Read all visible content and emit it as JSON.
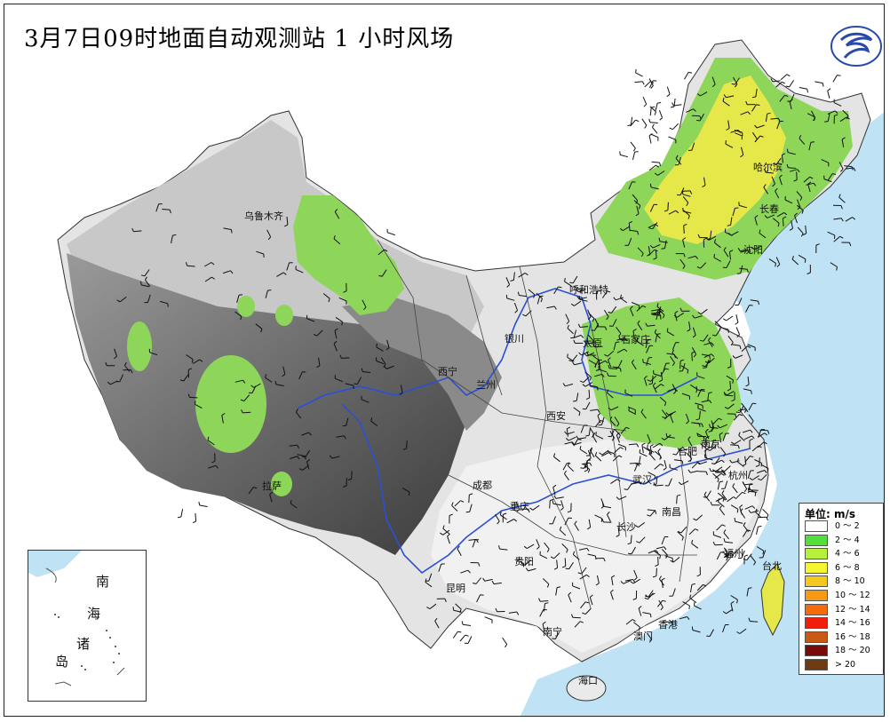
{
  "title": "3月7日09时地面自动观测站 1 小时风场",
  "logo_icon": "cma-logo-icon",
  "colors": {
    "sea": "#bfe3f5",
    "land_light": "#ececec",
    "land_mid": "#b8b8b8",
    "land_dark": "#555555",
    "wind_green": "#7fd44a",
    "wind_yellow": "#e6e84a",
    "river": "#2b4fd8",
    "border": "#333333",
    "barb": "#111111"
  },
  "cities": [
    {
      "name": "哈尔滨"
    },
    {
      "name": "长春"
    },
    {
      "name": "沈阳"
    },
    {
      "name": "乌鲁木齐"
    },
    {
      "name": "呼和浩特"
    },
    {
      "name": "银川"
    },
    {
      "name": "太原"
    },
    {
      "name": "石家庄"
    },
    {
      "name": "西宁"
    },
    {
      "name": "兰州"
    },
    {
      "name": "西安"
    },
    {
      "name": "合肥"
    },
    {
      "name": "南京"
    },
    {
      "name": "杭州"
    },
    {
      "name": "武汉"
    },
    {
      "name": "成都"
    },
    {
      "name": "重庆"
    },
    {
      "name": "长沙"
    },
    {
      "name": "南昌"
    },
    {
      "name": "贵阳"
    },
    {
      "name": "昆明"
    },
    {
      "name": "南宁"
    },
    {
      "name": "澳门"
    },
    {
      "name": "香港"
    },
    {
      "name": "福州"
    },
    {
      "name": "台北"
    },
    {
      "name": "海口"
    },
    {
      "name": "拉萨"
    }
  ],
  "inset": {
    "line1": "南",
    "line2": "海",
    "line3": "诸",
    "line4": "岛"
  },
  "legend": {
    "title": "单位: m/s",
    "items": [
      {
        "label": "0 ～ 2",
        "color": "#ffffff"
      },
      {
        "label": "2 ～ 4",
        "color": "#4fe03a"
      },
      {
        "label": "4 ～ 6",
        "color": "#b6f03a"
      },
      {
        "label": "6 ～ 8",
        "color": "#f5f532"
      },
      {
        "label": "8 ～ 10",
        "color": "#f5c81e"
      },
      {
        "label": "10 ～ 12",
        "color": "#f59a14"
      },
      {
        "label": "12 ～ 14",
        "color": "#f56a0a"
      },
      {
        "label": "14 ～ 16",
        "color": "#f01e0a"
      },
      {
        "label": "16 ～ 18",
        "color": "#c85a14"
      },
      {
        "label": "18 ～ 20",
        "color": "#7a0a0a"
      },
      {
        "label": "> 20",
        "color": "#6e3a14"
      }
    ]
  }
}
